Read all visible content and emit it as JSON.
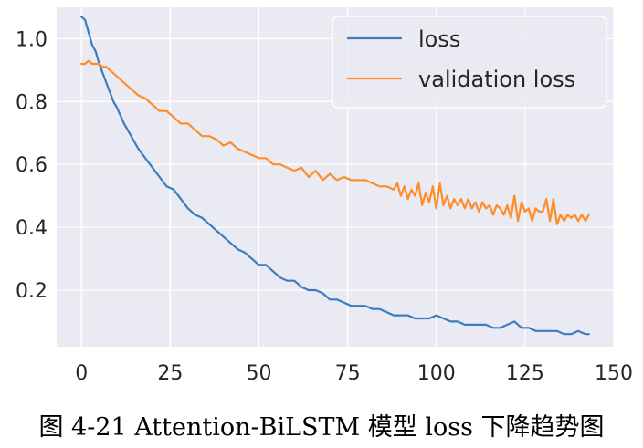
{
  "caption": "图 4-21 Attention-BiLSTM 模型 loss 下降趋势图",
  "chart_data": {
    "type": "line",
    "title": "",
    "xlabel": "",
    "ylabel": "",
    "xlim": [
      -7,
      150
    ],
    "ylim": [
      0.02,
      1.1
    ],
    "x_ticks": [
      0,
      25,
      50,
      75,
      100,
      125,
      150
    ],
    "y_ticks": [
      0.2,
      0.4,
      0.6,
      0.8,
      1.0
    ],
    "x_tick_labels": [
      "0",
      "25",
      "50",
      "75",
      "100",
      "125",
      "150"
    ],
    "y_tick_labels": [
      "0.2",
      "0.4",
      "0.6",
      "0.8",
      "1.0"
    ],
    "grid": true,
    "background": "#eaeaf2",
    "legend_position": "top-right",
    "series": [
      {
        "name": "loss",
        "color": "#3b7dbf",
        "x": [
          0,
          1,
          2,
          3,
          4,
          5,
          6,
          7,
          8,
          9,
          10,
          12,
          14,
          16,
          18,
          20,
          22,
          24,
          26,
          28,
          30,
          32,
          34,
          36,
          38,
          40,
          42,
          44,
          46,
          48,
          50,
          52,
          54,
          56,
          58,
          60,
          62,
          64,
          66,
          68,
          70,
          72,
          74,
          76,
          78,
          80,
          82,
          84,
          86,
          88,
          90,
          92,
          94,
          96,
          98,
          100,
          102,
          104,
          106,
          108,
          110,
          112,
          114,
          116,
          118,
          120,
          122,
          124,
          126,
          128,
          130,
          132,
          134,
          136,
          138,
          140,
          142,
          143
        ],
        "values": [
          1.07,
          1.06,
          1.02,
          0.98,
          0.96,
          0.92,
          0.89,
          0.86,
          0.83,
          0.8,
          0.78,
          0.73,
          0.69,
          0.65,
          0.62,
          0.59,
          0.56,
          0.53,
          0.52,
          0.49,
          0.46,
          0.44,
          0.43,
          0.41,
          0.39,
          0.37,
          0.35,
          0.33,
          0.32,
          0.3,
          0.28,
          0.28,
          0.26,
          0.24,
          0.23,
          0.23,
          0.21,
          0.2,
          0.2,
          0.19,
          0.17,
          0.17,
          0.16,
          0.15,
          0.15,
          0.15,
          0.14,
          0.14,
          0.13,
          0.12,
          0.12,
          0.12,
          0.11,
          0.11,
          0.11,
          0.12,
          0.11,
          0.1,
          0.1,
          0.09,
          0.09,
          0.09,
          0.09,
          0.08,
          0.08,
          0.09,
          0.1,
          0.08,
          0.08,
          0.07,
          0.07,
          0.07,
          0.07,
          0.06,
          0.06,
          0.07,
          0.06,
          0.06
        ]
      },
      {
        "name": "validation loss",
        "color": "#ff8c2a",
        "x": [
          0,
          1,
          2,
          3,
          4,
          5,
          6,
          7,
          8,
          9,
          10,
          12,
          14,
          16,
          18,
          20,
          22,
          24,
          26,
          28,
          30,
          32,
          34,
          36,
          38,
          40,
          42,
          44,
          46,
          48,
          50,
          52,
          54,
          56,
          58,
          60,
          62,
          64,
          66,
          68,
          70,
          72,
          74,
          76,
          78,
          80,
          82,
          84,
          86,
          88,
          89,
          90,
          91,
          92,
          93,
          94,
          95,
          96,
          97,
          98,
          99,
          100,
          101,
          102,
          103,
          104,
          105,
          106,
          107,
          108,
          109,
          110,
          111,
          112,
          113,
          114,
          115,
          116,
          117,
          118,
          119,
          120,
          121,
          122,
          123,
          124,
          125,
          126,
          127,
          128,
          129,
          130,
          131,
          132,
          133,
          134,
          135,
          136,
          137,
          138,
          139,
          140,
          141,
          142,
          143
        ],
        "values": [
          0.92,
          0.92,
          0.93,
          0.92,
          0.92,
          0.92,
          0.91,
          0.91,
          0.9,
          0.89,
          0.88,
          0.86,
          0.84,
          0.82,
          0.81,
          0.79,
          0.77,
          0.77,
          0.75,
          0.73,
          0.73,
          0.71,
          0.69,
          0.69,
          0.68,
          0.66,
          0.67,
          0.65,
          0.64,
          0.63,
          0.62,
          0.62,
          0.6,
          0.6,
          0.59,
          0.58,
          0.59,
          0.56,
          0.58,
          0.55,
          0.57,
          0.55,
          0.56,
          0.55,
          0.55,
          0.55,
          0.54,
          0.53,
          0.53,
          0.52,
          0.54,
          0.5,
          0.53,
          0.49,
          0.52,
          0.5,
          0.54,
          0.47,
          0.51,
          0.48,
          0.53,
          0.46,
          0.54,
          0.47,
          0.5,
          0.46,
          0.49,
          0.47,
          0.49,
          0.46,
          0.49,
          0.46,
          0.48,
          0.45,
          0.48,
          0.46,
          0.47,
          0.44,
          0.47,
          0.46,
          0.44,
          0.47,
          0.43,
          0.5,
          0.42,
          0.48,
          0.45,
          0.46,
          0.42,
          0.46,
          0.45,
          0.45,
          0.49,
          0.42,
          0.49,
          0.41,
          0.44,
          0.42,
          0.44,
          0.43,
          0.44,
          0.42,
          0.44,
          0.42,
          0.44
        ]
      }
    ]
  }
}
